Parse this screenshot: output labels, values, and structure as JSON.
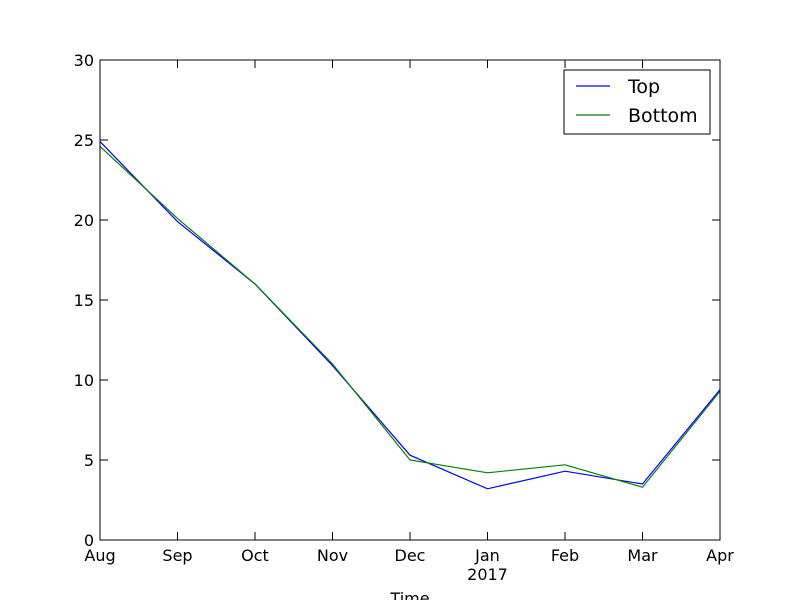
{
  "chart_data": {
    "type": "line",
    "title": "",
    "xlabel": "Time",
    "ylabel": "",
    "x": [
      "Aug",
      "Sep",
      "Oct",
      "Nov",
      "Dec",
      "Jan",
      "Feb",
      "Mar",
      "Apr"
    ],
    "x_sublabels": [
      "",
      "",
      "",
      "",
      "",
      "2017",
      "",
      "",
      ""
    ],
    "ylim": [
      0,
      30
    ],
    "yticks": [
      0,
      5,
      10,
      15,
      20,
      25,
      30
    ],
    "grid": false,
    "legend_position": "top-right",
    "series": [
      {
        "name": "Top",
        "color": "#0000ff",
        "values": [
          24.9,
          19.9,
          16.0,
          10.9,
          5.3,
          3.2,
          4.3,
          3.5,
          9.4
        ]
      },
      {
        "name": "Bottom",
        "color": "#008000",
        "values": [
          24.6,
          20.1,
          16.0,
          11.0,
          5.0,
          4.2,
          4.7,
          3.3,
          9.3
        ]
      }
    ]
  }
}
